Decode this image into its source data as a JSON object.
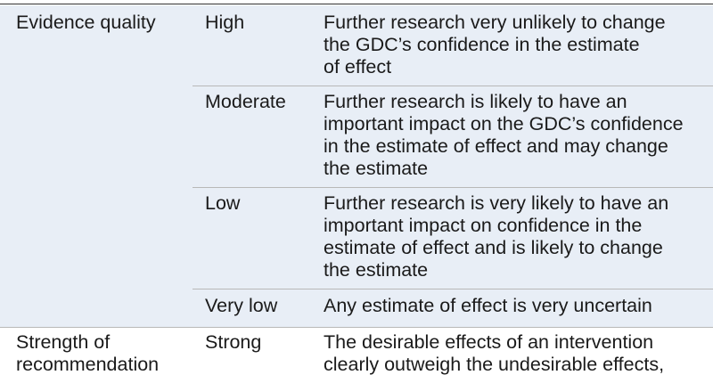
{
  "sections": [
    {
      "category": [
        "Evidence quality"
      ],
      "rows": [
        {
          "level": "High",
          "description": [
            "Further research very unlikely to change",
            "the GDC’s confidence in the estimate",
            "of effect"
          ]
        },
        {
          "level": "Moderate",
          "description": [
            "Further research is likely to have an",
            "important impact on the GDC’s confidence",
            "in the estimate of effect and may change",
            "the estimate"
          ]
        },
        {
          "level": "Low",
          "description": [
            "Further research is very likely to have an",
            "important impact on confidence in the",
            "estimate of effect and is likely to change",
            "the estimate"
          ]
        },
        {
          "level": "Very low",
          "description": [
            "Any estimate of effect is very uncertain"
          ]
        }
      ]
    },
    {
      "category": [
        "Strength of",
        "recommendation"
      ],
      "rows": [
        {
          "level": "Strong",
          "description": [
            "The desirable effects of an intervention",
            "clearly outweigh the undesirable effects,"
          ]
        }
      ]
    }
  ]
}
